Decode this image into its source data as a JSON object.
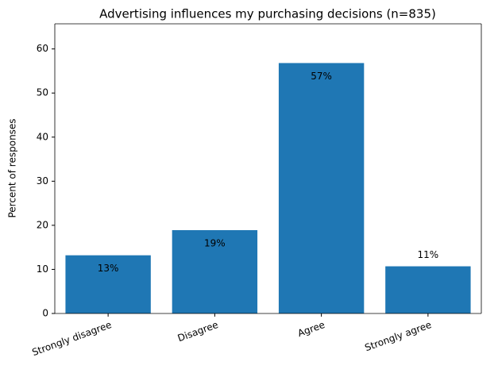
{
  "chart_data": {
    "type": "bar",
    "title": "Advertising influences my purchasing decisions (n=835)",
    "ylabel": "Percent of responses",
    "categories": [
      "Strongly disagree",
      "Disagree",
      "Agree",
      "Strongly agree"
    ],
    "values": [
      13.2,
      18.9,
      56.8,
      10.7
    ],
    "value_labels": [
      "13%",
      "19%",
      "57%",
      "11%"
    ],
    "color": "#1f77b4",
    "ylim": [
      0,
      65.7
    ],
    "yticks": [
      0,
      10,
      20,
      30,
      40,
      50,
      60
    ],
    "grid": false
  }
}
